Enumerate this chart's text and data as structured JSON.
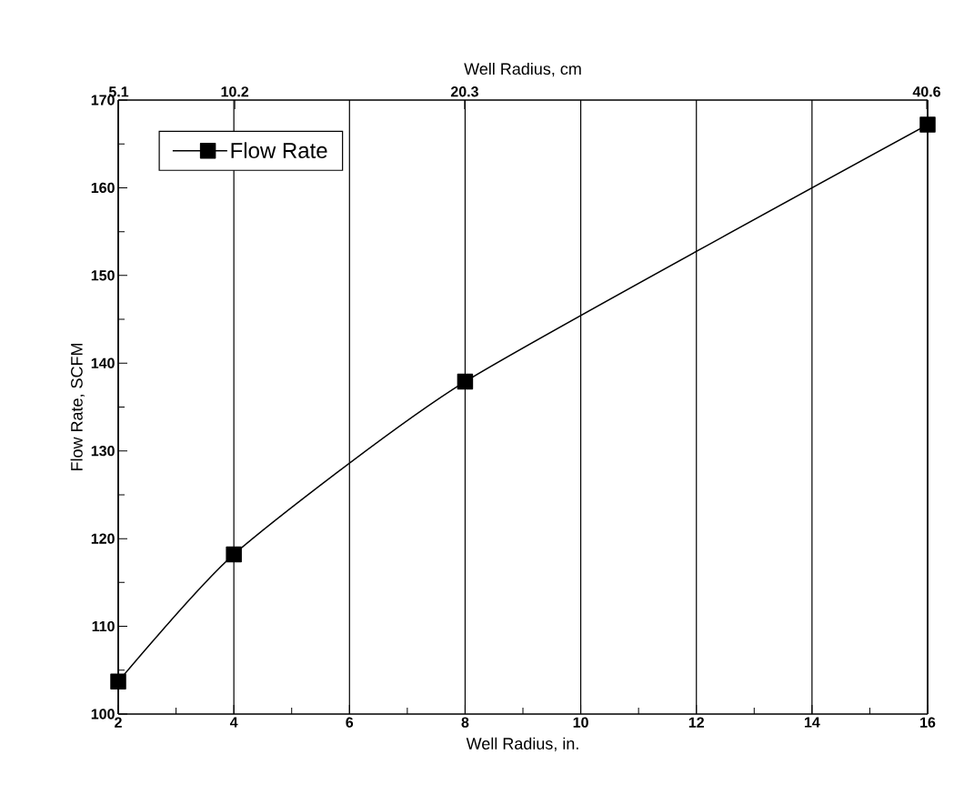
{
  "chart_data": {
    "type": "line",
    "xlabel": "Well Radius, in.",
    "ylabel": "Flow  Rate, SCFM",
    "x2label": "Well Radius, cm",
    "x": [
      2,
      4,
      8,
      16
    ],
    "series": [
      {
        "name": "Flow Rate",
        "color": "#000000",
        "values": [
          103.7,
          118.2,
          137.9,
          167.2
        ]
      }
    ],
    "xlim": [
      2,
      16
    ],
    "xticks": [
      2,
      4,
      6,
      8,
      10,
      12,
      14,
      16
    ],
    "ylim": [
      100,
      170
    ],
    "yticks": [
      100,
      110,
      120,
      130,
      140,
      150,
      160,
      170
    ],
    "x2lim": [
      5.08,
      40.64
    ],
    "x2ticks": [
      5.1,
      10.2,
      20.3,
      40.6
    ],
    "grid": "x",
    "legend": "top left",
    "marker": "square",
    "line_style": "solid"
  }
}
